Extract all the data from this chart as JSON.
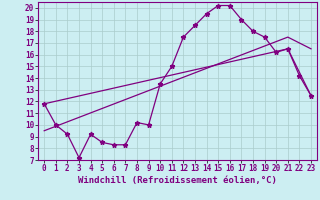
{
  "xlabel": "Windchill (Refroidissement éolien,°C)",
  "bg_color": "#cceef2",
  "line_color": "#800080",
  "grid_color": "#aacccc",
  "xlim": [
    -0.5,
    23.5
  ],
  "ylim": [
    7,
    20.5
  ],
  "xticks": [
    0,
    1,
    2,
    3,
    4,
    5,
    6,
    7,
    8,
    9,
    10,
    11,
    12,
    13,
    14,
    15,
    16,
    17,
    18,
    19,
    20,
    21,
    22,
    23
  ],
  "yticks": [
    7,
    8,
    9,
    10,
    11,
    12,
    13,
    14,
    15,
    16,
    17,
    18,
    19,
    20
  ],
  "line1_x": [
    0,
    1,
    2,
    3,
    4,
    5,
    6,
    7,
    8,
    9,
    10,
    11,
    12,
    13,
    14,
    15,
    16,
    17,
    18,
    19,
    20,
    21,
    22,
    23
  ],
  "line1_y": [
    11.8,
    10.0,
    9.2,
    7.2,
    9.2,
    8.5,
    8.3,
    8.3,
    10.2,
    10.0,
    13.5,
    15.0,
    17.5,
    18.5,
    19.5,
    20.2,
    20.2,
    19.0,
    18.0,
    17.5,
    16.2,
    16.5,
    14.2,
    12.5
  ],
  "line2_x": [
    0,
    21,
    23
  ],
  "line2_y": [
    9.5,
    17.5,
    16.5
  ],
  "line3_x": [
    0,
    21,
    23
  ],
  "line3_y": [
    11.8,
    16.5,
    12.5
  ],
  "marker": "*",
  "markersize": 3.5,
  "linewidth": 0.9,
  "font_color": "#800080",
  "xlabel_fontsize": 6.5,
  "tick_fontsize": 5.5
}
